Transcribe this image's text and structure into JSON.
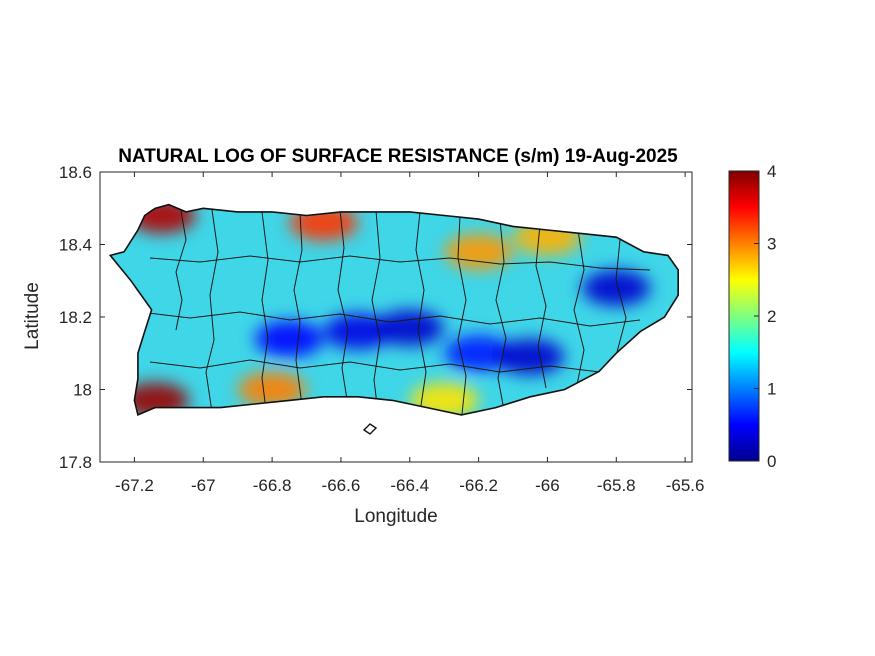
{
  "chart_data": {
    "type": "heatmap",
    "title": "NATURAL LOG OF SURFACE RESISTANCE (s/m) 19-Aug-2025",
    "xlabel": "Longitude",
    "ylabel": "Latitude",
    "xlim": [
      -67.3,
      -65.58
    ],
    "ylim": [
      17.8,
      18.6
    ],
    "xticks": [
      -67.2,
      -67,
      -66.8,
      -66.6,
      -66.4,
      -66.2,
      -66,
      -65.8,
      -65.6
    ],
    "xtick_labels": [
      "-67.2",
      "-67",
      "-66.8",
      "-66.6",
      "-66.4",
      "-66.2",
      "-66",
      "-65.8",
      "-65.6"
    ],
    "yticks": [
      17.8,
      18,
      18.2,
      18.4,
      18.6
    ],
    "ytick_labels": [
      "17.8",
      "18",
      "18.2",
      "18.4",
      "18.6"
    ],
    "colorbar": {
      "colormap": "jet",
      "range": [
        0,
        4
      ],
      "ticks": [
        0,
        1,
        2,
        3,
        4
      ],
      "tick_labels": [
        "0",
        "1",
        "2",
        "3",
        "4"
      ]
    },
    "grid": false,
    "island_outline": [
      [
        -67.27,
        18.37
      ],
      [
        -67.23,
        18.38
      ],
      [
        -67.19,
        18.44
      ],
      [
        -67.17,
        18.48
      ],
      [
        -67.14,
        18.5
      ],
      [
        -67.1,
        18.51
      ],
      [
        -67.05,
        18.49
      ],
      [
        -67.0,
        18.5
      ],
      [
        -66.9,
        18.49
      ],
      [
        -66.8,
        18.49
      ],
      [
        -66.7,
        18.48
      ],
      [
        -66.6,
        18.49
      ],
      [
        -66.5,
        18.49
      ],
      [
        -66.4,
        18.49
      ],
      [
        -66.3,
        18.48
      ],
      [
        -66.2,
        18.47
      ],
      [
        -66.1,
        18.45
      ],
      [
        -66.0,
        18.44
      ],
      [
        -65.9,
        18.43
      ],
      [
        -65.8,
        18.42
      ],
      [
        -65.72,
        18.38
      ],
      [
        -65.65,
        18.37
      ],
      [
        -65.62,
        18.33
      ],
      [
        -65.62,
        18.26
      ],
      [
        -65.66,
        18.2
      ],
      [
        -65.73,
        18.16
      ],
      [
        -65.8,
        18.1
      ],
      [
        -65.85,
        18.05
      ],
      [
        -65.95,
        18.0
      ],
      [
        -66.05,
        17.98
      ],
      [
        -66.15,
        17.95
      ],
      [
        -66.25,
        17.93
      ],
      [
        -66.35,
        17.95
      ],
      [
        -66.45,
        17.97
      ],
      [
        -66.55,
        17.98
      ],
      [
        -66.65,
        17.98
      ],
      [
        -66.75,
        17.97
      ],
      [
        -66.85,
        17.96
      ],
      [
        -66.95,
        17.95
      ],
      [
        -67.05,
        17.95
      ],
      [
        -67.14,
        17.95
      ],
      [
        -67.19,
        17.93
      ],
      [
        -67.2,
        17.97
      ],
      [
        -67.19,
        18.03
      ],
      [
        -67.19,
        18.1
      ],
      [
        -67.17,
        18.16
      ],
      [
        -67.15,
        18.22
      ],
      [
        -67.21,
        18.3
      ],
      [
        -67.27,
        18.37
      ]
    ],
    "field_anomalies": [
      {
        "lon": -66.75,
        "lat": 18.14,
        "value": 0.5
      },
      {
        "lon": -66.55,
        "lat": 18.16,
        "value": 0.4
      },
      {
        "lon": -66.4,
        "lat": 18.17,
        "value": 0.3
      },
      {
        "lon": -66.2,
        "lat": 18.1,
        "value": 0.6
      },
      {
        "lon": -66.05,
        "lat": 18.09,
        "value": 0.3
      },
      {
        "lon": -65.8,
        "lat": 18.28,
        "value": 0.3
      },
      {
        "lon": -67.12,
        "lat": 18.48,
        "value": 3.8
      },
      {
        "lon": -67.14,
        "lat": 17.97,
        "value": 3.9
      },
      {
        "lon": -66.65,
        "lat": 18.46,
        "value": 3.3
      },
      {
        "lon": -66.8,
        "lat": 18.0,
        "value": 3.0
      },
      {
        "lon": -66.2,
        "lat": 18.38,
        "value": 2.9
      },
      {
        "lon": -66.3,
        "lat": 17.97,
        "value": 2.6
      },
      {
        "lon": -66.0,
        "lat": 18.42,
        "value": 2.8
      }
    ]
  }
}
